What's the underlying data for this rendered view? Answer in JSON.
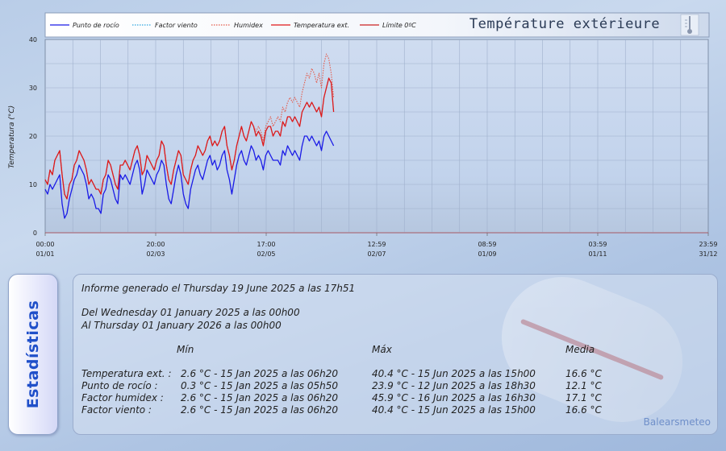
{
  "chart_data": {
    "type": "line",
    "title": "Température extérieure",
    "ylabel": "Temperatura (°C)",
    "ylim": [
      0,
      40
    ],
    "yticks": [
      "0",
      "10",
      "20",
      "30",
      "40"
    ],
    "xticks": [
      {
        "time": "00:00",
        "date": "01/01"
      },
      {
        "time": "20:00",
        "date": "02/03"
      },
      {
        "time": "17:00",
        "date": "02/05"
      },
      {
        "time": "12:59",
        "date": "02/07"
      },
      {
        "time": "08:59",
        "date": "01/09"
      },
      {
        "time": "03:59",
        "date": "01/11"
      },
      {
        "time": "23:59",
        "date": "31/12"
      }
    ],
    "legend_position": "top",
    "series": [
      {
        "name": "Punto de rocío",
        "style": "solid",
        "color": "#1a1ae6",
        "values": [
          9,
          8,
          10,
          9,
          10,
          11,
          12,
          6,
          3,
          4,
          7,
          9,
          11,
          12,
          14,
          13,
          12,
          10,
          7,
          8,
          7,
          5,
          5,
          4,
          8,
          9,
          12,
          11,
          9,
          7,
          6,
          12,
          11,
          12,
          11,
          10,
          12,
          14,
          15,
          13,
          8,
          10,
          13,
          12,
          11,
          10,
          12,
          13,
          15,
          14,
          10,
          7,
          6,
          9,
          12,
          14,
          12,
          8,
          6,
          5,
          9,
          11,
          13,
          14,
          12,
          11,
          13,
          15,
          16,
          14,
          15,
          13,
          14,
          16,
          17,
          13,
          11,
          8,
          11,
          14,
          16,
          17,
          15,
          14,
          16,
          18,
          17,
          15,
          16,
          15,
          13,
          16,
          17,
          16,
          15,
          15,
          15,
          14,
          17,
          16,
          18,
          17,
          16,
          17,
          16,
          15,
          18,
          20,
          20,
          19,
          20,
          19,
          18,
          19,
          17,
          20,
          21,
          20,
          19,
          18
        ]
      },
      {
        "name": "Factor viento",
        "style": "dotted",
        "color": "#2fa7e0",
        "values": [
          11,
          10,
          13,
          12,
          15,
          16,
          17,
          12,
          8,
          7,
          10,
          11,
          14,
          15,
          17,
          16,
          15,
          13,
          10,
          11,
          10,
          9,
          9,
          8,
          11,
          12,
          15,
          14,
          12,
          10,
          9,
          14,
          14,
          15,
          14,
          13,
          15,
          17,
          18,
          16,
          12,
          13,
          16,
          15,
          14,
          13,
          15,
          16,
          19,
          18,
          14,
          11,
          10,
          13,
          15,
          17,
          16,
          12,
          11,
          10,
          13,
          15,
          16,
          18,
          17,
          16,
          17,
          19,
          20,
          18,
          19,
          18,
          19,
          21,
          22,
          18,
          16,
          13,
          15,
          18,
          20,
          22,
          20,
          19,
          21,
          23,
          22,
          20,
          21,
          20,
          18,
          21,
          22,
          22,
          20,
          21,
          21,
          20,
          23,
          22,
          24,
          24,
          23,
          24,
          23,
          22,
          25,
          26,
          27,
          26,
          27,
          26,
          25,
          26,
          24,
          28,
          30,
          32,
          31,
          25
        ]
      },
      {
        "name": "Humidex",
        "style": "dotted",
        "color": "#e45a4a",
        "values": [
          11,
          10,
          13,
          12,
          15,
          16,
          17,
          12,
          8,
          7,
          10,
          11,
          14,
          15,
          17,
          16,
          15,
          13,
          10,
          11,
          10,
          9,
          9,
          8,
          11,
          12,
          15,
          14,
          12,
          10,
          9,
          14,
          14,
          15,
          14,
          13,
          15,
          17,
          18,
          16,
          12,
          13,
          16,
          15,
          14,
          13,
          15,
          16,
          19,
          18,
          14,
          11,
          10,
          13,
          15,
          17,
          16,
          12,
          11,
          10,
          13,
          15,
          16,
          18,
          17,
          16,
          17,
          19,
          20,
          18,
          19,
          18,
          19,
          21,
          22,
          18,
          16,
          13,
          15,
          18,
          20,
          22,
          20,
          19,
          21,
          23,
          22,
          21,
          22,
          21,
          19,
          22,
          23,
          24,
          22,
          23,
          24,
          23,
          26,
          25,
          27,
          28,
          27,
          28,
          27,
          26,
          29,
          31,
          33,
          32,
          34,
          33,
          31,
          33,
          30,
          35,
          37,
          36,
          33,
          28
        ]
      },
      {
        "name": "Temperatura ext.",
        "style": "solid",
        "color": "#e01818",
        "values": [
          11,
          10,
          13,
          12,
          15,
          16,
          17,
          12,
          8,
          7,
          10,
          11,
          14,
          15,
          17,
          16,
          15,
          13,
          10,
          11,
          10,
          9,
          9,
          8,
          11,
          12,
          15,
          14,
          12,
          10,
          9,
          14,
          14,
          15,
          14,
          13,
          15,
          17,
          18,
          16,
          12,
          13,
          16,
          15,
          14,
          13,
          15,
          16,
          19,
          18,
          14,
          11,
          10,
          13,
          15,
          17,
          16,
          12,
          11,
          10,
          13,
          15,
          16,
          18,
          17,
          16,
          17,
          19,
          20,
          18,
          19,
          18,
          19,
          21,
          22,
          18,
          16,
          13,
          15,
          18,
          20,
          22,
          20,
          19,
          21,
          23,
          22,
          20,
          21,
          20,
          18,
          21,
          22,
          22,
          20,
          21,
          21,
          20,
          23,
          22,
          24,
          24,
          23,
          24,
          23,
          22,
          25,
          26,
          27,
          26,
          27,
          26,
          25,
          26,
          24,
          28,
          30,
          32,
          31,
          25
        ]
      },
      {
        "name": "Límite 0ºC",
        "style": "solid",
        "color": "#cc2222",
        "values": [
          0
        ]
      }
    ],
    "series_x_end_fraction": 0.435
  },
  "stats": {
    "side_label": "Estadísticas",
    "generated": "Informe generado el Thursday 19 June 2025 a las 17h51",
    "from": "Del Wednesday 01 January 2025 a las 00h00",
    "to": "Al Thursday 01 January 2026 a las 00h00",
    "headers": {
      "min": "Mín",
      "max": "Máx",
      "avg": "Media"
    },
    "rows": [
      {
        "label": "Temperatura ext. :",
        "min": "2.6 °C - 15 Jan 2025 a las 06h20",
        "max": "40.4 °C - 15 Jun 2025 a las 15h00",
        "avg": "16.6 °C"
      },
      {
        "label": "Punto de rocío :",
        "min": "0.3 °C - 15 Jan 2025 a las 05h50",
        "max": "23.9 °C - 12 Jun 2025 a las 18h30",
        "avg": "12.1 °C"
      },
      {
        "label": "Factor humidex :",
        "min": "2.6 °C - 15 Jan 2025 a las 06h20",
        "max": "45.9 °C - 16 Jun 2025 a las 16h30",
        "avg": "17.1 °C"
      },
      {
        "label": "Factor viento :",
        "min": "2.6 °C - 15 Jan 2025 a las 06h20",
        "max": "40.4 °C - 15 Jun 2025 a las 15h00",
        "avg": "16.6 °C"
      }
    ],
    "brand": "Balearsmeteo"
  }
}
